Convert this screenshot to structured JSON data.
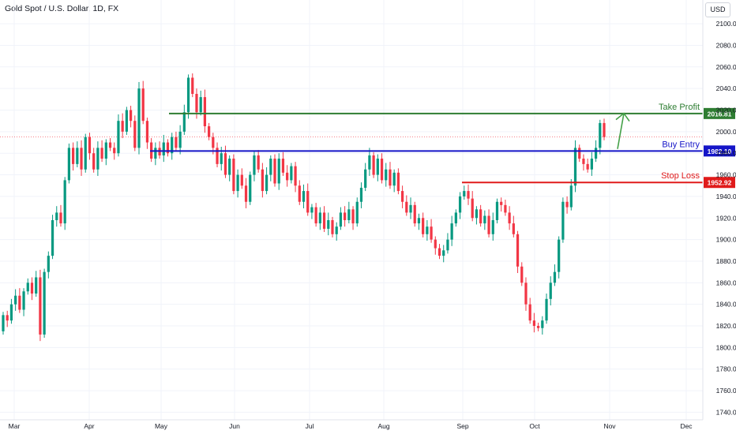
{
  "title": "Gold Spot / U.S. Dollar, 1D, FX",
  "currency_label": "USD",
  "colors": {
    "up": "#089981",
    "down": "#f23645",
    "take_profit": "#2e7d32",
    "buy_entry": "#1515c8",
    "stop_loss": "#e01b1b",
    "arrow": "#43a047",
    "grid": "#f0f3fa",
    "axis_text": "#131722",
    "last_price_line": "#f23645"
  },
  "chart_data": {
    "type": "candlestick",
    "title": "Gold Spot / U.S. Dollar, 1D, FX",
    "x_ticks": [
      "Mar",
      "Apr",
      "May",
      "Jun",
      "Jul",
      "Aug",
      "Sep",
      "Oct",
      "Nov",
      "Dec"
    ],
    "ylim": [
      1733,
      2122
    ],
    "y_ticks": [
      1740,
      1760,
      1780,
      1800,
      1820,
      1840,
      1860,
      1880,
      1900,
      1920,
      1940,
      1960,
      1980,
      2000,
      2020,
      2040,
      2060,
      2080,
      2100
    ],
    "grid": true,
    "candles_approx": [
      [
        1815,
        1830
      ],
      [
        1830,
        1825
      ],
      [
        1825,
        1840
      ],
      [
        1840,
        1848
      ],
      [
        1848,
        1835
      ],
      [
        1835,
        1852
      ],
      [
        1852,
        1860
      ],
      [
        1860,
        1850
      ],
      [
        1850,
        1865
      ],
      [
        1865,
        1812
      ],
      [
        1812,
        1870
      ],
      [
        1870,
        1885
      ],
      [
        1885,
        1918
      ],
      [
        1918,
        1925
      ],
      [
        1925,
        1915
      ],
      [
        1915,
        1955
      ],
      [
        1955,
        1985
      ],
      [
        1985,
        1970
      ],
      [
        1970,
        1985
      ],
      [
        1985,
        1965
      ],
      [
        1965,
        1995
      ],
      [
        1995,
        1980
      ],
      [
        1980,
        1965
      ],
      [
        1965,
        1985
      ],
      [
        1985,
        1975
      ],
      [
        1975,
        1990
      ],
      [
        1990,
        1985
      ],
      [
        1985,
        1980
      ],
      [
        1980,
        2010
      ],
      [
        2010,
        2000
      ],
      [
        2000,
        2020
      ],
      [
        2020,
        2010
      ],
      [
        2010,
        1985
      ],
      [
        1985,
        2040
      ],
      [
        2040,
        2010
      ],
      [
        2010,
        1990
      ],
      [
        1990,
        1975
      ],
      [
        1975,
        1985
      ],
      [
        1985,
        1978
      ],
      [
        1978,
        1990
      ],
      [
        1990,
        1980
      ],
      [
        1980,
        1995
      ],
      [
        1995,
        1985
      ],
      [
        1985,
        2000
      ],
      [
        2000,
        2018
      ],
      [
        2018,
        2050
      ],
      [
        2050,
        2035
      ],
      [
        2035,
        2018
      ],
      [
        2018,
        2032
      ],
      [
        2032,
        2005
      ],
      [
        2005,
        1995
      ],
      [
        1995,
        1985
      ],
      [
        1985,
        1970
      ],
      [
        1970,
        1980
      ],
      [
        1980,
        1960
      ],
      [
        1960,
        1975
      ],
      [
        1975,
        1945
      ],
      [
        1945,
        1960
      ],
      [
        1960,
        1950
      ],
      [
        1950,
        1935
      ],
      [
        1935,
        1960
      ],
      [
        1960,
        1978
      ],
      [
        1978,
        1965
      ],
      [
        1965,
        1945
      ],
      [
        1945,
        1960
      ],
      [
        1960,
        1975
      ],
      [
        1975,
        1952
      ],
      [
        1952,
        1975
      ],
      [
        1975,
        1962
      ],
      [
        1962,
        1955
      ],
      [
        1955,
        1968
      ],
      [
        1968,
        1950
      ],
      [
        1950,
        1935
      ],
      [
        1935,
        1945
      ],
      [
        1945,
        1925
      ],
      [
        1925,
        1930
      ],
      [
        1930,
        1915
      ],
      [
        1915,
        1925
      ],
      [
        1925,
        1910
      ],
      [
        1910,
        1918
      ],
      [
        1918,
        1905
      ],
      [
        1905,
        1912
      ],
      [
        1912,
        1925
      ],
      [
        1925,
        1918
      ],
      [
        1918,
        1928
      ],
      [
        1928,
        1915
      ],
      [
        1915,
        1935
      ],
      [
        1935,
        1948
      ],
      [
        1948,
        1965
      ],
      [
        1965,
        1978
      ],
      [
        1978,
        1960
      ],
      [
        1960,
        1975
      ],
      [
        1975,
        1955
      ],
      [
        1955,
        1965
      ],
      [
        1965,
        1950
      ],
      [
        1950,
        1962
      ],
      [
        1962,
        1945
      ],
      [
        1945,
        1935
      ],
      [
        1935,
        1925
      ],
      [
        1925,
        1932
      ],
      [
        1932,
        1915
      ],
      [
        1915,
        1920
      ],
      [
        1920,
        1905
      ],
      [
        1905,
        1912
      ],
      [
        1912,
        1900
      ],
      [
        1900,
        1892
      ],
      [
        1892,
        1885
      ],
      [
        1885,
        1890
      ],
      [
        1890,
        1900
      ],
      [
        1900,
        1915
      ],
      [
        1915,
        1925
      ],
      [
        1925,
        1940
      ],
      [
        1940,
        1945
      ],
      [
        1945,
        1938
      ],
      [
        1938,
        1920
      ],
      [
        1920,
        1928
      ],
      [
        1928,
        1915
      ],
      [
        1915,
        1922
      ],
      [
        1922,
        1905
      ],
      [
        1905,
        1918
      ],
      [
        1918,
        1935
      ],
      [
        1935,
        1932
      ],
      [
        1932,
        1925
      ],
      [
        1925,
        1915
      ],
      [
        1915,
        1905
      ],
      [
        1905,
        1875
      ],
      [
        1875,
        1860
      ],
      [
        1860,
        1840
      ],
      [
        1840,
        1825
      ],
      [
        1825,
        1820
      ],
      [
        1820,
        1818
      ],
      [
        1818,
        1825
      ],
      [
        1825,
        1845
      ],
      [
        1845,
        1860
      ],
      [
        1860,
        1870
      ],
      [
        1870,
        1900
      ],
      [
        1900,
        1935
      ],
      [
        1935,
        1930
      ],
      [
        1930,
        1950
      ],
      [
        1950,
        1985
      ],
      [
        1985,
        1975
      ],
      [
        1975,
        1970
      ],
      [
        1970,
        1965
      ],
      [
        1965,
        1975
      ],
      [
        1975,
        1985
      ],
      [
        1985,
        2008
      ],
      [
        2008,
        1995
      ]
    ],
    "levels": [
      {
        "name": "Take Profit",
        "value": 2016.81,
        "label": "2016.81"
      },
      {
        "name": "Buy Entry",
        "value": 1982.1,
        "label": "1982.10"
      },
      {
        "name": "Stop Loss",
        "value": 1952.92,
        "label": "1952.92"
      }
    ]
  }
}
